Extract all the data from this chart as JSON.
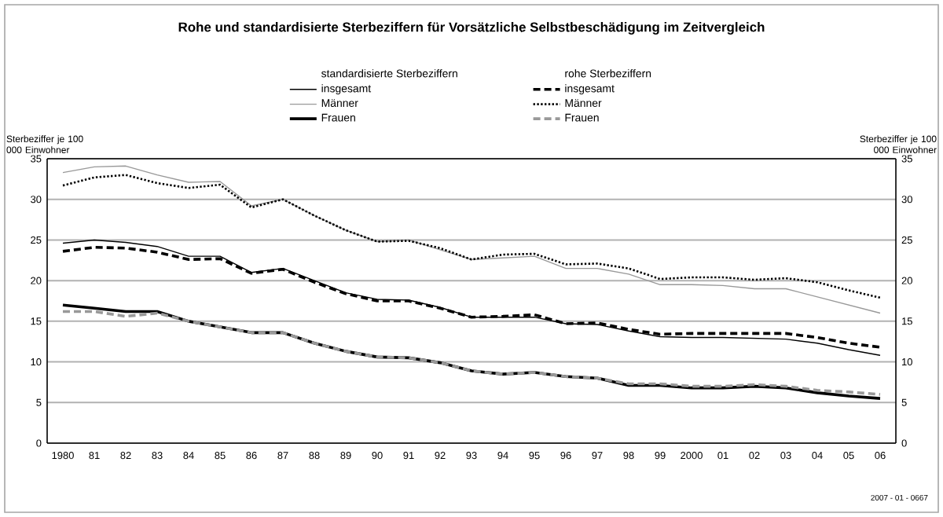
{
  "chart_data": {
    "type": "line",
    "title": "Rohe und standardisierte Sterbeziffern für Vorsätzliche Selbstbeschädigung im Zeitvergleich",
    "ylabel": "Sterbeziffer je 100 000 Einwohner",
    "y2label": "Sterbeziffer je 100 000 Einwohner",
    "categories": [
      "1980",
      "81",
      "82",
      "83",
      "84",
      "85",
      "86",
      "87",
      "88",
      "89",
      "90",
      "91",
      "92",
      "93",
      "94",
      "95",
      "96",
      "97",
      "98",
      "99",
      "2000",
      "01",
      "02",
      "03",
      "04",
      "05",
      "06"
    ],
    "series": [
      {
        "name": "insgesamt",
        "color": "#000000",
        "line_style": "solid",
        "values": [
          24.6,
          25,
          24.7,
          24.2,
          23,
          23,
          21,
          21.5,
          20,
          18.5,
          17.7,
          17.6,
          16.7,
          15.5,
          15.5,
          15.5,
          14.7,
          14.6,
          13.8,
          13.1,
          13,
          13,
          12.9,
          12.8,
          12.3,
          11.5,
          10.8
        ]
      },
      {
        "name": "insgesamt",
        "color": "#000000",
        "line_style": "dashed",
        "values": [
          23.6,
          24.1,
          24,
          23.5,
          22.6,
          22.7,
          20.9,
          21.4,
          19.8,
          18.4,
          17.5,
          17.5,
          16.6,
          15.5,
          15.6,
          15.8,
          14.7,
          14.8,
          14,
          13.4,
          13.5,
          13.5,
          13.5,
          13.5,
          13,
          12.3,
          11.8
        ]
      },
      {
        "name": "Männer",
        "color": "#999999",
        "line_style": "solid",
        "values": [
          33.3,
          34,
          34.1,
          33,
          32.1,
          32.2,
          29.2,
          30,
          28,
          26.2,
          24.8,
          25,
          23.8,
          22.6,
          22.8,
          23,
          21.5,
          21.5,
          20.8,
          19.5,
          19.5,
          19.4,
          19,
          19,
          18,
          17,
          16
        ]
      },
      {
        "name": "Männer",
        "color": "#000000",
        "line_style": "dotted",
        "values": [
          31.7,
          32.7,
          33,
          32,
          31.4,
          31.8,
          29,
          30,
          28,
          26.2,
          24.8,
          24.9,
          24,
          22.6,
          23.2,
          23.3,
          22,
          22.1,
          21.5,
          20.2,
          20.4,
          20.4,
          20.1,
          20.3,
          19.8,
          18.8,
          17.9
        ]
      },
      {
        "name": "Frauen",
        "color": "#000000",
        "line_style": "solid",
        "values": [
          17,
          16.6,
          16.2,
          16.2,
          15,
          14.3,
          13.6,
          13.6,
          12.3,
          11.3,
          10.6,
          10.5,
          9.9,
          8.9,
          8.5,
          8.7,
          8.2,
          8,
          7.1,
          7.1,
          6.8,
          6.8,
          7,
          6.8,
          6.2,
          5.8,
          5.5
        ]
      },
      {
        "name": "Frauen",
        "color": "#999999",
        "line_style": "dashed",
        "values": [
          16.2,
          16.2,
          15.6,
          16,
          15,
          14.3,
          13.6,
          13.6,
          12.3,
          11.3,
          10.6,
          10.5,
          9.9,
          8.9,
          8.5,
          8.7,
          8.2,
          8,
          7.3,
          7.3,
          7,
          7,
          7.2,
          7,
          6.5,
          6.3,
          6
        ]
      }
    ],
    "ylim": [
      0,
      35
    ],
    "yticks": [
      0,
      5,
      10,
      15,
      20,
      25,
      30,
      35
    ],
    "y2lim": [
      0,
      35
    ],
    "y2ticks": [
      0,
      5,
      10,
      15,
      20,
      25,
      30,
      35
    ],
    "grid": "y",
    "legend": "top",
    "marker": "none",
    "annotations": [
      "standardisierte Sterbeziffern",
      "rohe Sterbeziffern",
      "2007 - 01 - 0667"
    ]
  }
}
